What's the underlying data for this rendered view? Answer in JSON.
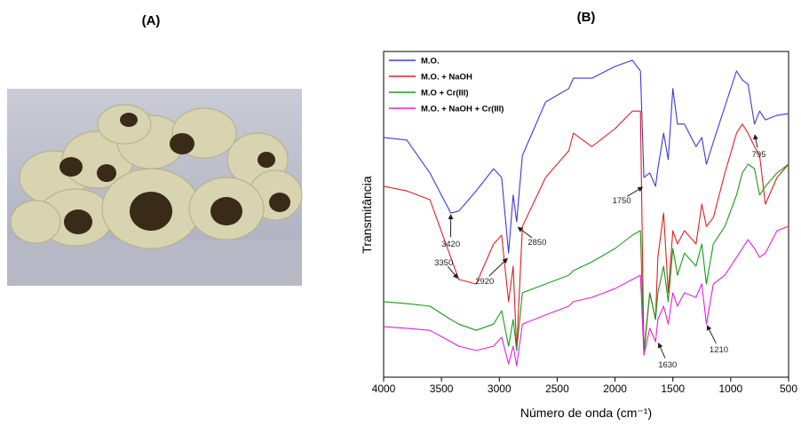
{
  "panel_labels": [
    "(A)",
    "(B)"
  ],
  "chart_data": {
    "type": "line",
    "xlabel": "Número de onda (cm⁻¹)",
    "ylabel": "Transmitância",
    "xlim": [
      4000,
      500
    ],
    "xticks": [
      4000,
      3500,
      3000,
      2500,
      2000,
      1500,
      1000,
      500
    ],
    "ylim": [
      0,
      100
    ],
    "legend": "top-left",
    "x": [
      4000,
      3800,
      3600,
      3420,
      3350,
      3200,
      3050,
      2980,
      2920,
      2880,
      2850,
      2800,
      2600,
      2400,
      2360,
      2200,
      2000,
      1850,
      1780,
      1750,
      1700,
      1650,
      1630,
      1580,
      1540,
      1500,
      1460,
      1400,
      1300,
      1250,
      1210,
      1150,
      1050,
      950,
      900,
      850,
      795,
      750,
      700,
      600,
      500
    ],
    "series": [
      {
        "name": "M.O.",
        "color": "#3a3ae0",
        "values": [
          73.6,
          72.8,
          62.7,
          50.4,
          51.0,
          57.2,
          64.0,
          61.3,
          38.1,
          55.9,
          47.7,
          68.1,
          84.5,
          88.6,
          91.8,
          91.8,
          95.4,
          97.3,
          94.0,
          61.3,
          62.7,
          58.6,
          64.0,
          74.9,
          66.8,
          88.6,
          77.7,
          77.7,
          70.8,
          73.6,
          65.4,
          72.2,
          83.1,
          94.0,
          91.3,
          89.9,
          77.7,
          81.7,
          79.0,
          80.4,
          80.9
        ]
      },
      {
        "name": "M.O. + NaOH",
        "color": "#e02020",
        "values": [
          58.6,
          57.2,
          54.5,
          36.8,
          30.0,
          28.6,
          40.9,
          43.6,
          23.2,
          34.1,
          8.2,
          46.3,
          61.3,
          69.5,
          74.9,
          70.8,
          76.3,
          81.7,
          81.7,
          6.8,
          25.9,
          17.7,
          36.8,
          50.4,
          25.9,
          45.0,
          40.9,
          45.0,
          40.9,
          53.1,
          46.3,
          49.0,
          62.7,
          74.9,
          77.7,
          74.9,
          70.8,
          68.1,
          53.1,
          61.3,
          65.4
        ]
      },
      {
        "name": "M.O + Cr(III)",
        "color": "#1a9a1a",
        "values": [
          23.2,
          22.6,
          21.8,
          17.7,
          16.3,
          14.4,
          16.3,
          20.4,
          9.5,
          17.7,
          8.2,
          25.9,
          28.6,
          31.3,
          32.7,
          35.4,
          39.5,
          43.6,
          45.0,
          8.2,
          25.9,
          17.7,
          25.9,
          34.1,
          23.2,
          39.5,
          31.3,
          38.1,
          34.1,
          40.9,
          28.6,
          40.9,
          46.3,
          55.9,
          62.7,
          65.4,
          64.0,
          55.9,
          58.6,
          62.7,
          65.4
        ]
      },
      {
        "name": "M.O. + NaOH + Cr(III)",
        "color": "#e020e0",
        "values": [
          15.5,
          15.0,
          14.4,
          10.9,
          9.5,
          8.2,
          9.5,
          12.3,
          4.1,
          9.5,
          3.5,
          16.3,
          19.1,
          21.8,
          23.2,
          24.5,
          27.2,
          30.0,
          31.3,
          6.8,
          15.0,
          10.9,
          17.7,
          21.8,
          16.3,
          25.9,
          21.8,
          25.9,
          24.5,
          28.6,
          16.3,
          28.6,
          31.3,
          36.8,
          39.5,
          42.2,
          39.5,
          36.8,
          38.1,
          45.0,
          46.3
        ]
      }
    ],
    "annotations": [
      {
        "label": "3420",
        "x": 3420,
        "y": 50.4
      },
      {
        "label": "3350",
        "x": 3350,
        "y": 30.0
      },
      {
        "label": "2920",
        "x": 2920,
        "y": 36.8
      },
      {
        "label": "2850",
        "x": 2850,
        "y": 46.3
      },
      {
        "label": "1750",
        "x": 1750,
        "y": 58.6
      },
      {
        "label": "1630",
        "x": 1630,
        "y": 10.9
      },
      {
        "label": "1210",
        "x": 1210,
        "y": 16.3
      },
      {
        "label": "795",
        "x": 795,
        "y": 74.9
      }
    ]
  }
}
